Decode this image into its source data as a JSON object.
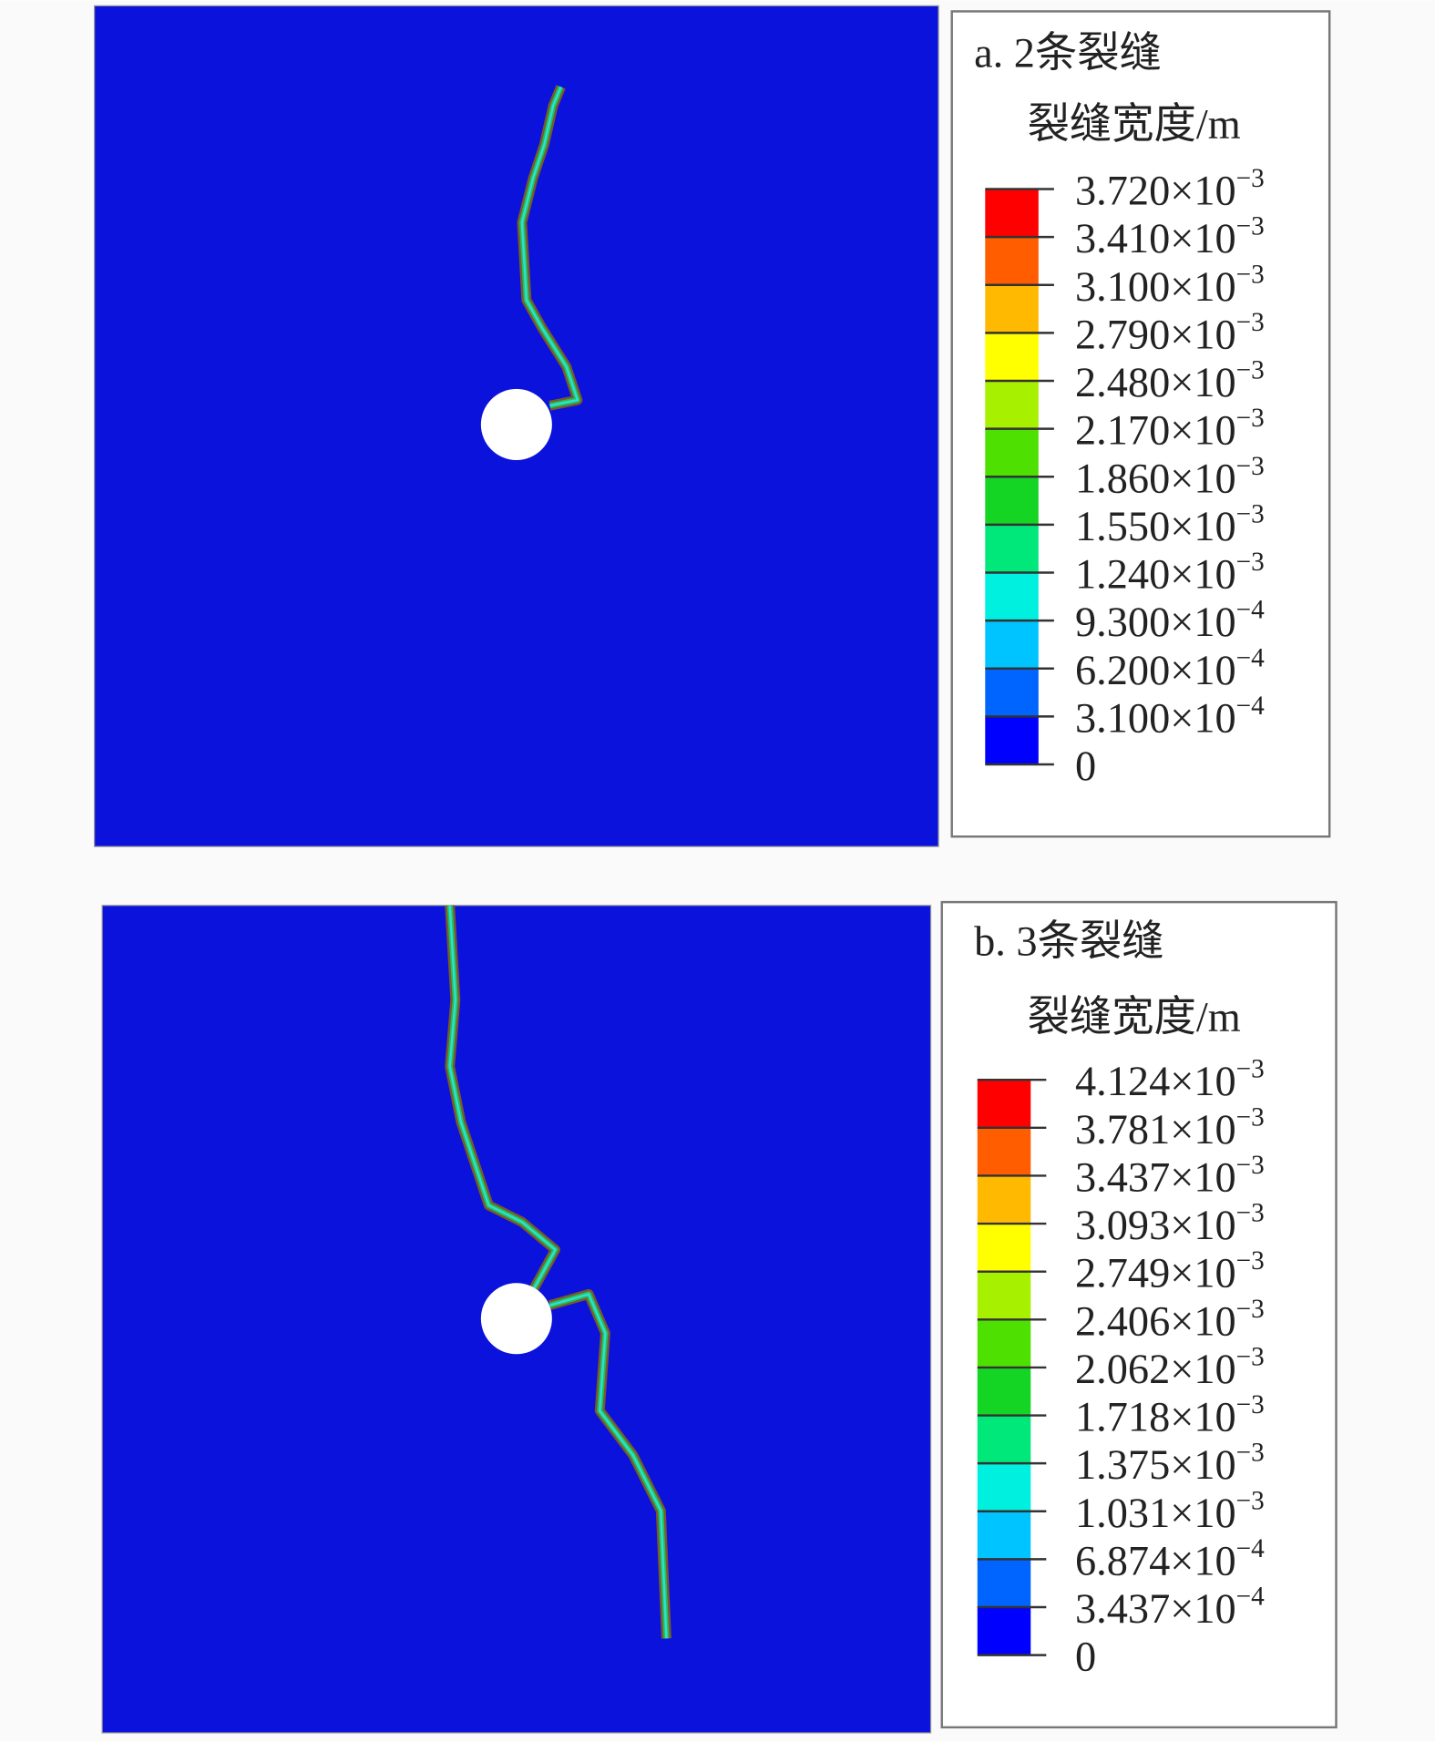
{
  "panels": [
    {
      "title": "a. 2条裂缝",
      "legend_title": "裂缝宽度/m",
      "colors": [
        "#ff0000",
        "#ff5d00",
        "#ffb900",
        "#ffff00",
        "#a6f000",
        "#4ee000",
        "#14d424",
        "#00e87a",
        "#00f0e0",
        "#00c4ff",
        "#0064ff",
        "#0000ff"
      ],
      "labels": [
        {
          "base": "3.720×10",
          "exp": "−3"
        },
        {
          "base": "3.410×10",
          "exp": "−3"
        },
        {
          "base": "3.100×10",
          "exp": "−3"
        },
        {
          "base": "2.790×10",
          "exp": "−3"
        },
        {
          "base": "2.480×10",
          "exp": "−3"
        },
        {
          "base": "2.170×10",
          "exp": "−3"
        },
        {
          "base": "1.860×10",
          "exp": "−3"
        },
        {
          "base": "1.550×10",
          "exp": "−3"
        },
        {
          "base": "1.240×10",
          "exp": "−3"
        },
        {
          "base": "9.300×10",
          "exp": "−4"
        },
        {
          "base": "6.200×10",
          "exp": "−4"
        },
        {
          "base": "3.100×10",
          "exp": "−4"
        },
        {
          "base": "0"
        }
      ]
    },
    {
      "title": "b. 3条裂缝",
      "legend_title": "裂缝宽度/m",
      "colors": [
        "#ff0000",
        "#ff5d00",
        "#ffb900",
        "#ffff00",
        "#a6f000",
        "#4ee000",
        "#14d424",
        "#00e87a",
        "#00f0e0",
        "#00c4ff",
        "#0064ff",
        "#0000ff"
      ],
      "labels": [
        {
          "base": "4.124×10",
          "exp": "−3"
        },
        {
          "base": "3.781×10",
          "exp": "−3"
        },
        {
          "base": "3.437×10",
          "exp": "−3"
        },
        {
          "base": "3.093×10",
          "exp": "−3"
        },
        {
          "base": "2.749×10",
          "exp": "−3"
        },
        {
          "base": "2.406×10",
          "exp": "−3"
        },
        {
          "base": "2.062×10",
          "exp": "−3"
        },
        {
          "base": "1.718×10",
          "exp": "−3"
        },
        {
          "base": "1.375×10",
          "exp": "−3"
        },
        {
          "base": "1.031×10",
          "exp": "−3"
        },
        {
          "base": "6.874×10",
          "exp": "−4"
        },
        {
          "base": "3.437×10",
          "exp": "−4"
        },
        {
          "base": "0"
        }
      ]
    }
  ]
}
